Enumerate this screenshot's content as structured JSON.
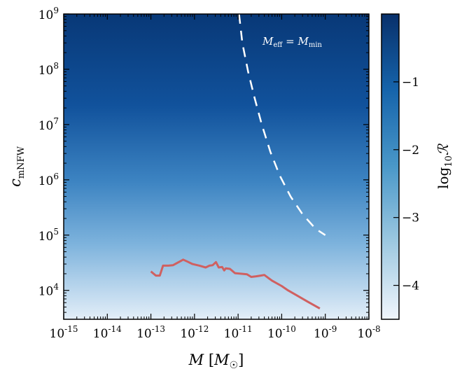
{
  "chart_data": {
    "type": "heatmap",
    "xlabel": "M [M☉]",
    "ylabel": "c_mNFW",
    "xscale": "log",
    "yscale": "log",
    "xlim": [
      1e-15,
      1e-08
    ],
    "ylim": [
      3000,
      1000000000.0
    ],
    "x_ticks": [
      {
        "base": "10",
        "exp": "-15",
        "value": 1e-15
      },
      {
        "base": "10",
        "exp": "-14",
        "value": 1e-14
      },
      {
        "base": "10",
        "exp": "-13",
        "value": 1e-13
      },
      {
        "base": "10",
        "exp": "-12",
        "value": 1e-12
      },
      {
        "base": "10",
        "exp": "-11",
        "value": 1e-11
      },
      {
        "base": "10",
        "exp": "-10",
        "value": 1e-10
      },
      {
        "base": "10",
        "exp": "-9",
        "value": 1e-09
      },
      {
        "base": "10",
        "exp": "-8",
        "value": 1e-08
      }
    ],
    "y_ticks": [
      {
        "base": "10",
        "exp": "4",
        "value": 10000.0
      },
      {
        "base": "10",
        "exp": "5",
        "value": 100000.0
      },
      {
        "base": "10",
        "exp": "6",
        "value": 1000000.0
      },
      {
        "base": "10",
        "exp": "7",
        "value": 10000000.0
      },
      {
        "base": "10",
        "exp": "8",
        "value": 100000000.0
      },
      {
        "base": "10",
        "exp": "9",
        "value": 1000000000.0
      }
    ],
    "colorbar": {
      "label": "log₁₀ℛ",
      "range": [
        -4.5,
        0
      ],
      "ticks": [
        "−1",
        "−2",
        "−3",
        "−4"
      ],
      "tick_values": [
        -1,
        -2,
        -3,
        -4
      ],
      "colormap": "Blues",
      "color_low": "#f1f6fc",
      "color_high": "#08306b"
    },
    "series": [
      {
        "style": "red-solid",
        "color": "#d06060",
        "points": [
          [
            1e-13,
            22000
          ],
          [
            1.3e-13,
            18500
          ],
          [
            1.6e-13,
            18500
          ],
          [
            1.9e-13,
            28000
          ],
          [
            2.5e-13,
            28000
          ],
          [
            3.2e-13,
            28500
          ],
          [
            4.5e-13,
            33000
          ],
          [
            5.5e-13,
            36000
          ],
          [
            7e-13,
            33000
          ],
          [
            9e-13,
            30000
          ],
          [
            1.3e-12,
            28000
          ],
          [
            1.8e-12,
            26000
          ],
          [
            2.2e-12,
            28000
          ],
          [
            2.6e-12,
            28500
          ],
          [
            3.1e-12,
            32500
          ],
          [
            3.6e-12,
            26000
          ],
          [
            4.3e-12,
            26500
          ],
          [
            4.8e-12,
            23000
          ],
          [
            5.2e-12,
            25000
          ],
          [
            6.5e-12,
            24500
          ],
          [
            8.5e-12,
            20500
          ],
          [
            1.2e-11,
            20000
          ],
          [
            1.6e-11,
            19500
          ],
          [
            2e-11,
            17500
          ],
          [
            2.6e-11,
            18000
          ],
          [
            3.3e-11,
            18500
          ],
          [
            4e-11,
            19000
          ],
          [
            6e-11,
            15000
          ],
          [
            1e-10,
            12000
          ],
          [
            1.4e-10,
            10000
          ],
          [
            2.3e-10,
            8000
          ],
          [
            4e-10,
            6200
          ],
          [
            7.5e-10,
            4700
          ]
        ]
      },
      {
        "name": "M_eff = M_min",
        "style": "white-dashed",
        "color": "#ffffff",
        "points": [
          [
            1.05e-11,
            1000000000.0
          ],
          [
            1.25e-11,
            300000000.0
          ],
          [
            1.7e-11,
            90000000.0
          ],
          [
            2.4e-11,
            30000000.0
          ],
          [
            3.5e-11,
            10000000.0
          ],
          [
            5.5e-11,
            3200000.0
          ],
          [
            9e-11,
            1200000.0
          ],
          [
            1.6e-10,
            500000.0
          ],
          [
            3e-10,
            240000.0
          ],
          [
            6e-10,
            130000.0
          ],
          [
            1e-09,
            100000.0
          ]
        ]
      }
    ],
    "annotations": [
      {
        "text": "M_eff = M_min",
        "x": 1.5e-10,
        "y": 500000000.0
      }
    ]
  }
}
